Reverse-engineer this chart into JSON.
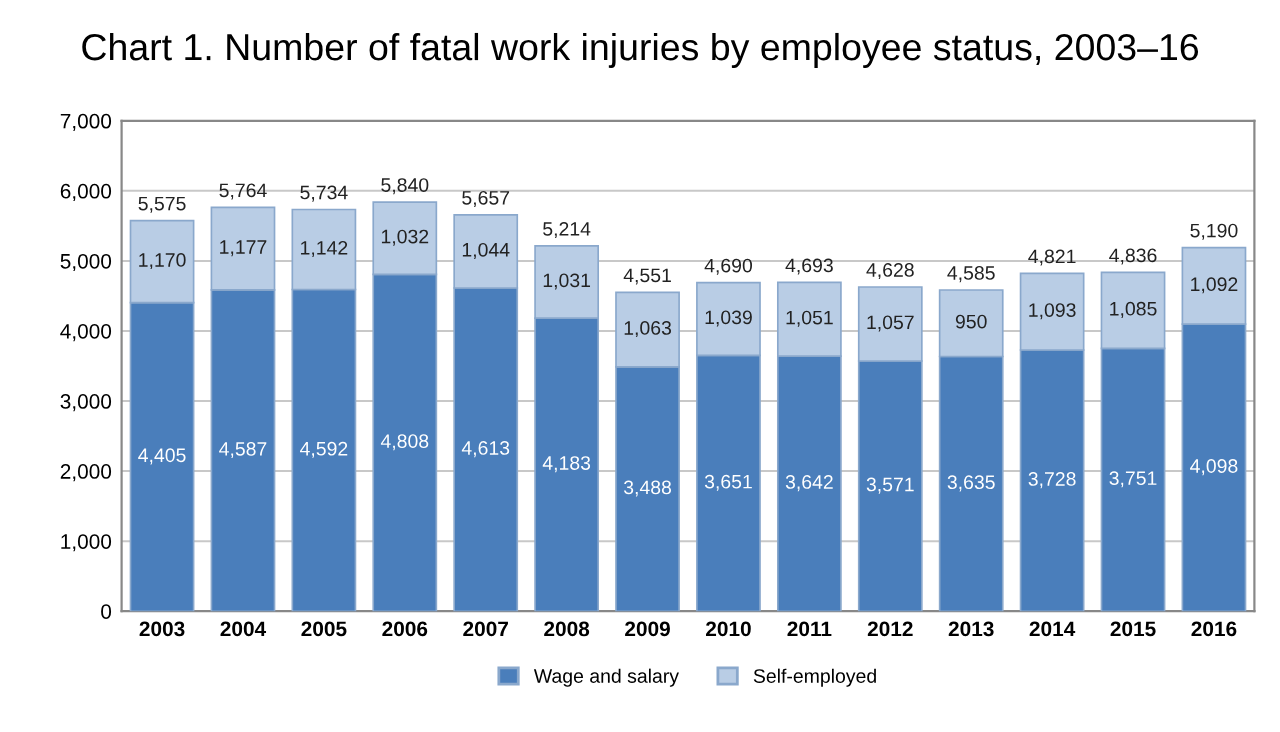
{
  "chart_data": {
    "type": "bar",
    "title": "Chart 1. Number of fatal work injuries by employee status, 2003–16",
    "categories": [
      "2003",
      "2004",
      "2005",
      "2006",
      "2007",
      "2008",
      "2009",
      "2010",
      "2011",
      "2012",
      "2013",
      "2014",
      "2015",
      "2016"
    ],
    "stacked": true,
    "series": [
      {
        "name": "Wage and salary",
        "color": "#4a7ebb",
        "values": [
          4405,
          4587,
          4592,
          4808,
          4613,
          4183,
          3488,
          3651,
          3642,
          3571,
          3635,
          3728,
          3751,
          4098
        ],
        "value_labels": [
          "4,405",
          "4,587",
          "4,592",
          "4,808",
          "4,613",
          "4,183",
          "3,488",
          "3,651",
          "3,642",
          "3,571",
          "3,635",
          "3,728",
          "3,751",
          "4,098"
        ]
      },
      {
        "name": "Self-employed",
        "color": "#b9cde5",
        "values": [
          1170,
          1177,
          1142,
          1032,
          1044,
          1031,
          1063,
          1039,
          1051,
          1057,
          950,
          1093,
          1085,
          1092
        ],
        "value_labels": [
          "1,170",
          "1,177",
          "1,142",
          "1,032",
          "1,044",
          "1,031",
          "1,063",
          "1,039",
          "1,051",
          "1,057",
          "950",
          "1,093",
          "1,085",
          "1,092"
        ]
      }
    ],
    "totals": [
      "5,575",
      "5,764",
      "5,734",
      "5,840",
      "5,657",
      "5,214",
      "4,551",
      "4,690",
      "4,693",
      "4,628",
      "4,585",
      "4,821",
      "4,836",
      "5,190"
    ],
    "ylim": [
      0,
      7000
    ],
    "yticks": [
      {
        "value": 0,
        "label": "0"
      },
      {
        "value": 1000,
        "label": "1,000"
      },
      {
        "value": 2000,
        "label": "2,000"
      },
      {
        "value": 3000,
        "label": "3,000"
      },
      {
        "value": 4000,
        "label": "4,000"
      },
      {
        "value": 5000,
        "label": "5,000"
      },
      {
        "value": 6000,
        "label": "6,000"
      },
      {
        "value": 7000,
        "label": "7,000"
      }
    ],
    "grid": "y",
    "legend": "bottom"
  }
}
